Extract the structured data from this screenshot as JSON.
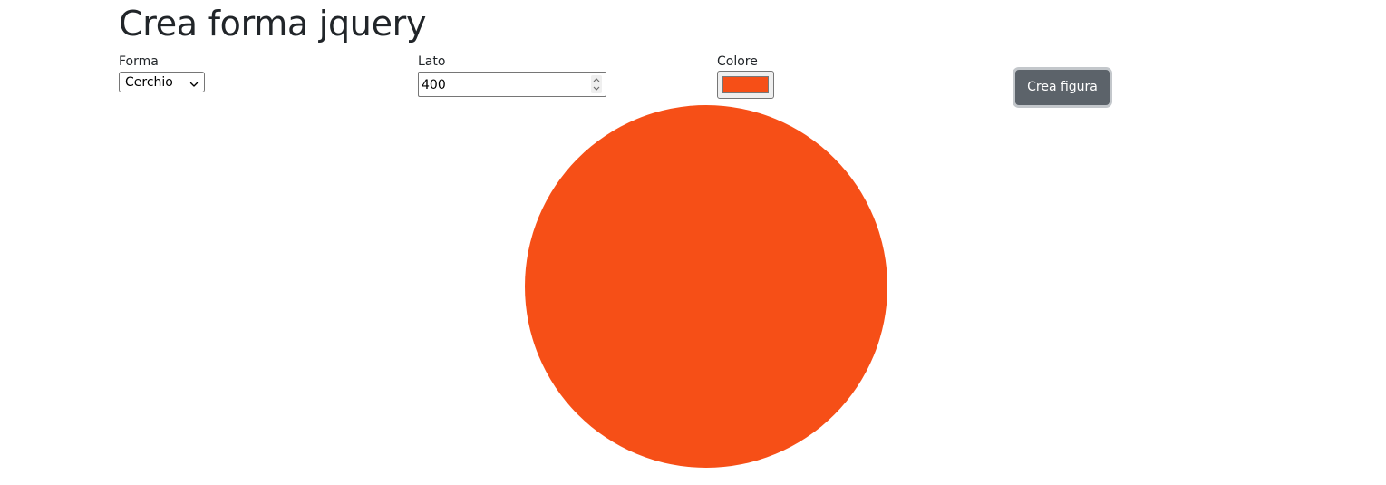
{
  "page": {
    "title": "Crea forma jquery"
  },
  "form": {
    "shape_label": "Forma",
    "shape_value": "Cerchio",
    "side_label": "Lato",
    "side_value": "400",
    "color_label": "Colore",
    "color_value": "#f64f17",
    "create_button_label": "Crea figura"
  },
  "output": {
    "shape": "circle",
    "side": 400,
    "fill_color": "#f64f17"
  },
  "icons": {
    "select": "chevron-down-icon",
    "spinner_up": "chevron-up-icon",
    "spinner_down": "chevron-down-icon"
  },
  "colors": {
    "button_bg": "#5c636a",
    "button_focus_ring": "#c3c7cb",
    "text": "#212529"
  }
}
